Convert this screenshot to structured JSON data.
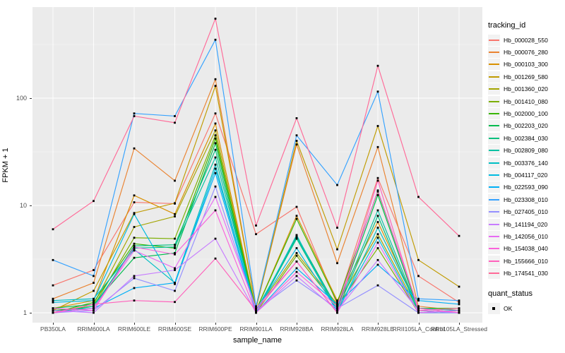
{
  "axes": {
    "y_title": "FPKM + 1",
    "x_title": "sample_name"
  },
  "legend": {
    "tracking_title": "tracking_id",
    "quant_title": "quant_status",
    "quant_items": [
      "OK"
    ]
  },
  "chart_data": {
    "type": "line",
    "title": "",
    "xlabel": "sample_name",
    "ylabel": "FPKM + 1",
    "yscale": "log10",
    "ylim": [
      0.9,
      708
    ],
    "yticks": [
      1,
      10,
      100
    ],
    "ytick_labels": [
      "1",
      "10",
      "100"
    ],
    "minor_gridlines": [
      3.162,
      31.62,
      316.2
    ],
    "grid": true,
    "legend_position": "right",
    "panel_bg": "#EBEBEB",
    "gridline_color": "#FFFFFF",
    "point_color": "#000000",
    "point_shape": "square",
    "quant_status_all": "OK",
    "categories": [
      "PB350LA",
      "RRIM600LA",
      "RRIM600LE",
      "RRIM600SE",
      "RRIM600PE",
      "RRIM901LA",
      "RRIM928BA",
      "RRIM928LA",
      "RRIM928LE",
      "RRII105LA_Control",
      "RRII105LA_Stressed"
    ],
    "series": [
      {
        "name": "Hb_000028_550",
        "color": "#F8766D",
        "values": [
          1.8,
          2.5,
          10.7,
          10.4,
          72,
          5.4,
          9.7,
          1.2,
          18,
          2.2,
          1.25
        ]
      },
      {
        "name": "Hb_000076_280",
        "color": "#EA8331",
        "values": [
          1.35,
          1.9,
          34,
          17,
          150,
          1.1,
          37,
          2.9,
          35,
          1.15,
          1.05
        ]
      },
      {
        "name": "Hb_000103_300",
        "color": "#D89000",
        "values": [
          1.1,
          1.3,
          12.4,
          8.3,
          58,
          1.05,
          8.0,
          1.3,
          7.0,
          1.1,
          1.0
        ]
      },
      {
        "name": "Hb_001269_580",
        "color": "#C09B00",
        "values": [
          1.05,
          1.6,
          8.5,
          10.5,
          130,
          1.1,
          40,
          3.9,
          55,
          3.1,
          1.75
        ]
      },
      {
        "name": "Hb_001360_020",
        "color": "#A3A500",
        "values": [
          1.0,
          1.2,
          6.3,
          7.9,
          50,
          1.05,
          3.6,
          1.2,
          5.4,
          1.05,
          1.0
        ]
      },
      {
        "name": "Hb_001410_080",
        "color": "#7CAE00",
        "values": [
          1.05,
          1.15,
          5.0,
          4.9,
          45,
          1.0,
          3.4,
          1.15,
          4.0,
          1.0,
          1.05
        ]
      },
      {
        "name": "Hb_002000_100",
        "color": "#39B600",
        "values": [
          1.0,
          1.25,
          4.4,
          4.0,
          42,
          1.05,
          7.5,
          1.25,
          13.5,
          1.1,
          1.1
        ]
      },
      {
        "name": "Hb_002203_020",
        "color": "#00BB4E",
        "values": [
          1.1,
          1.2,
          3.25,
          3.6,
          38,
          1.0,
          5.2,
          1.1,
          12.5,
          1.05,
          1.0
        ]
      },
      {
        "name": "Hb_002384_030",
        "color": "#00BF7D",
        "values": [
          1.05,
          1.1,
          4.2,
          4.3,
          33,
          1.0,
          4.9,
          1.05,
          8.0,
          1.0,
          1.05
        ]
      },
      {
        "name": "Hb_002809_080",
        "color": "#00C1A3",
        "values": [
          1.0,
          1.15,
          4.0,
          4.1,
          28,
          1.05,
          5.0,
          1.1,
          9.0,
          1.05,
          1.0
        ]
      },
      {
        "name": "Hb_003376_140",
        "color": "#00BFC4",
        "values": [
          1.3,
          1.35,
          3.9,
          1.9,
          24,
          1.0,
          5.3,
          1.0,
          6.2,
          1.1,
          1.05
        ]
      },
      {
        "name": "Hb_004117_020",
        "color": "#00BAE0",
        "values": [
          1.25,
          1.3,
          8.3,
          1.85,
          22,
          1.05,
          4.0,
          1.05,
          5.0,
          1.0,
          1.0
        ]
      },
      {
        "name": "Hb_022593_090",
        "color": "#00B0F6",
        "values": [
          1.0,
          1.1,
          1.7,
          1.9,
          20,
          1.0,
          2.6,
          1.2,
          2.8,
          1.3,
          1.2
        ]
      },
      {
        "name": "Hb_023308_010",
        "color": "#35A2FF",
        "values": [
          3.1,
          2.2,
          72,
          68,
          350,
          1.15,
          45,
          15.5,
          115,
          1.35,
          1.3
        ]
      },
      {
        "name": "Hb_027405_010",
        "color": "#9590FF",
        "values": [
          1.0,
          1.05,
          2.1,
          1.6,
          15,
          1.05,
          2.0,
          1.1,
          1.8,
          1.0,
          1.0
        ]
      },
      {
        "name": "Hb_141194_020",
        "color": "#C77CFF",
        "values": [
          1.05,
          1.0,
          2.2,
          2.5,
          4.9,
          1.0,
          2.2,
          1.05,
          3.1,
          1.05,
          1.0
        ]
      },
      {
        "name": "Hb_142056_010",
        "color": "#E76BF3",
        "values": [
          1.0,
          1.1,
          3.8,
          2.6,
          12,
          1.1,
          3.0,
          1.0,
          4.5,
          1.0,
          1.05
        ]
      },
      {
        "name": "Hb_154038_040",
        "color": "#FA62DB",
        "values": [
          1.1,
          1.05,
          4.1,
          3.5,
          9.0,
          1.0,
          2.4,
          1.15,
          13.8,
          1.1,
          1.0
        ]
      },
      {
        "name": "Hb_155666_010",
        "color": "#FF62BC",
        "values": [
          1.0,
          1.2,
          1.3,
          1.26,
          3.2,
          1.05,
          3.0,
          1.0,
          17,
          1.05,
          1.1
        ]
      },
      {
        "name": "Hb_174541_030",
        "color": "#FF6A98",
        "values": [
          6.0,
          11,
          68,
          59,
          550,
          6.5,
          65,
          6.2,
          200,
          12,
          5.2
        ]
      }
    ]
  }
}
